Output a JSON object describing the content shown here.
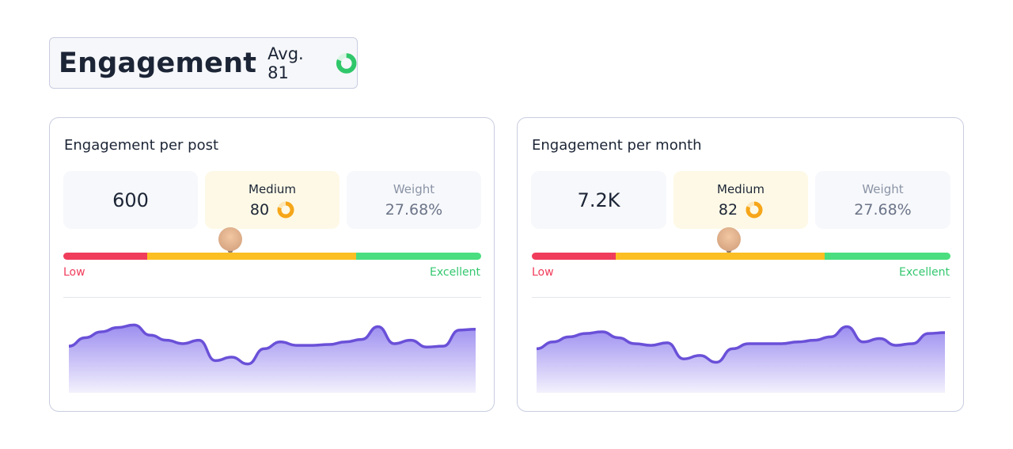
{
  "header": {
    "title": "Engagement",
    "avg_label": "Avg. 81",
    "avg_value": 81,
    "ring_color": "#2fc76a"
  },
  "cards": [
    {
      "title": "Engagement per post",
      "value": "600",
      "level_label": "Medium",
      "level_value": "80",
      "level_score": 80,
      "weight_label": "Weight",
      "weight_value": "27.68%",
      "gauge_position_pct": 40,
      "low_label": "Low",
      "excellent_label": "Excellent",
      "sparkline": [
        55,
        65,
        72,
        77,
        80,
        68,
        62,
        58,
        62,
        38,
        42,
        34,
        52,
        60,
        56,
        56,
        57,
        60,
        63,
        78,
        58,
        62,
        54,
        55,
        74,
        75
      ]
    },
    {
      "title": "Engagement per month",
      "value": "7.2K",
      "level_label": "Medium",
      "level_value": "82",
      "level_score": 82,
      "weight_label": "Weight",
      "weight_value": "27.68%",
      "gauge_position_pct": 47,
      "low_label": "Low",
      "excellent_label": "Excellent",
      "sparkline": [
        52,
        60,
        66,
        70,
        72,
        65,
        58,
        56,
        59,
        40,
        44,
        36,
        52,
        58,
        58,
        58,
        60,
        62,
        66,
        78,
        60,
        64,
        56,
        58,
        70,
        71
      ]
    }
  ],
  "colors": {
    "low": "#f03d5b",
    "medium": "#fbbf24",
    "excellent": "#4ade80",
    "line": "#6a50d8",
    "area_top": "#9c8ef0",
    "area_bottom": "#f3f1fd",
    "medium_ring": "#f6a619"
  }
}
